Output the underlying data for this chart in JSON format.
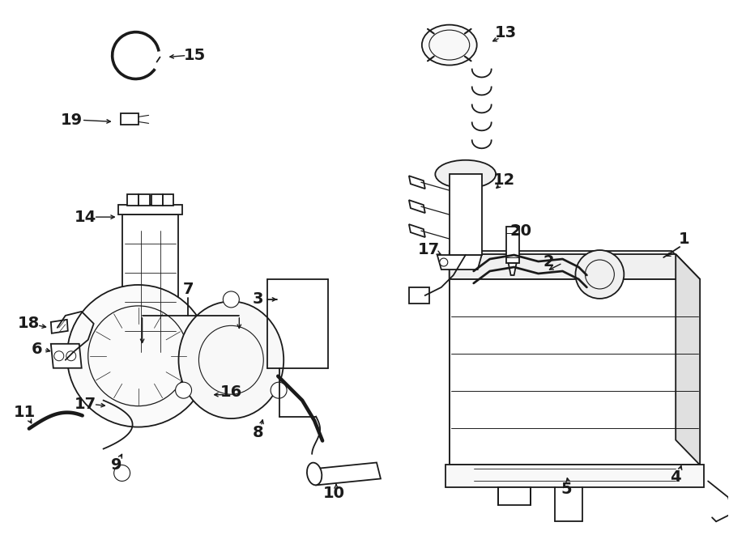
{
  "background_color": "#ffffff",
  "line_color": "#1a1a1a",
  "lw": 1.3,
  "fig_width": 9.0,
  "fig_height": 6.61,
  "dpi": 100
}
